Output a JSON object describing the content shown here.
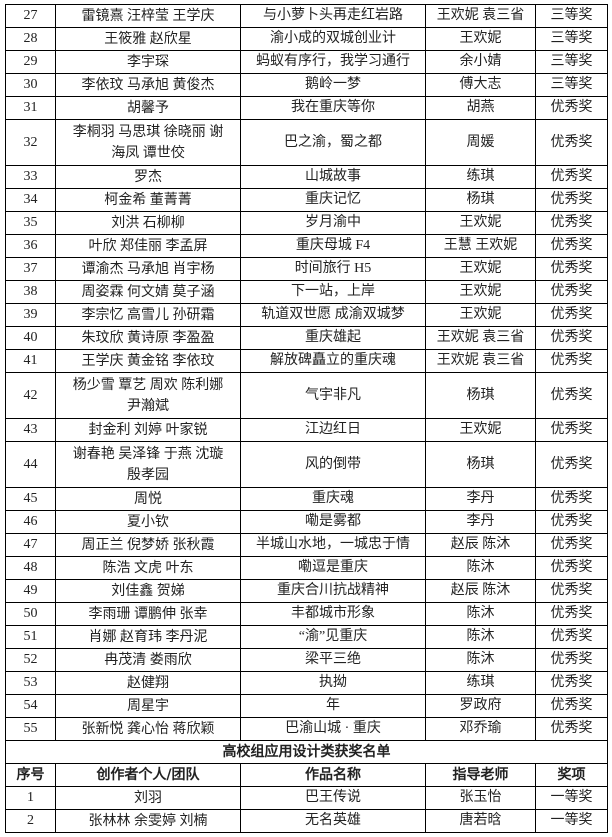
{
  "rows_top": [
    {
      "no": "27",
      "team": [
        "雷镜熹 汪梓莹 王学庆"
      ],
      "work": "与小萝卜头再走红岩路",
      "teacher": "王欢妮 袁三省",
      "award": "三等奖"
    },
    {
      "no": "28",
      "team": [
        "王筱雅 赵欣星"
      ],
      "work": "渝小成的双城创业计",
      "teacher": "王欢妮",
      "award": "三等奖"
    },
    {
      "no": "29",
      "team": [
        "李宇琛"
      ],
      "work": "蚂蚁有序行，我学习通行",
      "teacher": "余小婧",
      "award": "三等奖"
    },
    {
      "no": "30",
      "team": [
        "李依玟 马承旭 黄俊杰"
      ],
      "work": "鹅岭一梦",
      "teacher": "傅大志",
      "award": "三等奖"
    },
    {
      "no": "31",
      "team": [
        "胡馨予"
      ],
      "work": "我在重庆等你",
      "teacher": "胡燕",
      "award": "优秀奖"
    },
    {
      "no": "32",
      "team": [
        "李桐羽 马思琪 徐晓丽 谢",
        "海凤 谭世佼"
      ],
      "work": "巴之渝，蜀之都",
      "teacher": "周媛",
      "award": "优秀奖"
    },
    {
      "no": "33",
      "team": [
        "罗杰"
      ],
      "work": "山城故事",
      "teacher": "练琪",
      "award": "优秀奖"
    },
    {
      "no": "34",
      "team": [
        "柯金希 董菁菁"
      ],
      "work": "重庆记忆",
      "teacher": "杨琪",
      "award": "优秀奖"
    },
    {
      "no": "35",
      "team": [
        "刘洪 石柳柳"
      ],
      "work": "岁月渝中",
      "teacher": "王欢妮",
      "award": "优秀奖"
    },
    {
      "no": "36",
      "team": [
        "叶欣 郑佳丽 李孟屏"
      ],
      "work": "重庆母城 F4",
      "teacher": "王慧 王欢妮",
      "award": "优秀奖"
    },
    {
      "no": "37",
      "team": [
        "谭渝杰 马承旭 肖宇杨"
      ],
      "work": "时间旅行 H5",
      "teacher": "王欢妮",
      "award": "优秀奖"
    },
    {
      "no": "38",
      "team": [
        "周姿霖 何文婧 莫子涵"
      ],
      "work": "下一站，上岸",
      "teacher": "王欢妮",
      "award": "优秀奖"
    },
    {
      "no": "39",
      "team": [
        "李宗忆 高雪儿 孙研霜"
      ],
      "work": "轨道双世愿 成渝双城梦",
      "teacher": "王欢妮",
      "award": "优秀奖"
    },
    {
      "no": "40",
      "team": [
        "朱玟欣 黄诗原 李盈盈"
      ],
      "work": "重庆雄起",
      "teacher": "王欢妮 袁三省",
      "award": "优秀奖"
    },
    {
      "no": "41",
      "team": [
        "王学庆 黄金铭 李依玟"
      ],
      "work": "解放碑矗立的重庆魂",
      "teacher": "王欢妮 袁三省",
      "award": "优秀奖"
    },
    {
      "no": "42",
      "team": [
        "杨少雪 覃艺 周欢 陈利娜",
        "尹瀚斌"
      ],
      "work": "气宇非凡",
      "teacher": "杨琪",
      "award": "优秀奖"
    },
    {
      "no": "43",
      "team": [
        "封金利 刘婷 叶家锐"
      ],
      "work": "江边红日",
      "teacher": "王欢妮",
      "award": "优秀奖"
    },
    {
      "no": "44",
      "team": [
        "谢春艳 吴泽锋 于燕 沈璇",
        "殷孝园"
      ],
      "work": "风的倒带",
      "teacher": "杨琪",
      "award": "优秀奖"
    },
    {
      "no": "45",
      "team": [
        "周悦"
      ],
      "work": "重庆魂",
      "teacher": "李丹",
      "award": "优秀奖"
    },
    {
      "no": "46",
      "team": [
        "夏小钦"
      ],
      "work": "嘞是雾都",
      "teacher": "李丹",
      "award": "优秀奖"
    },
    {
      "no": "47",
      "team": [
        "周正兰 倪梦娇 张秋霞"
      ],
      "work": "半城山水地，一城忠于情",
      "teacher": "赵辰 陈沐",
      "award": "优秀奖"
    },
    {
      "no": "48",
      "team": [
        "陈浩 文虎 叶东"
      ],
      "work": "嘞逗是重庆",
      "teacher": "陈沐",
      "award": "优秀奖"
    },
    {
      "no": "49",
      "team": [
        "刘佳鑫 贺娣"
      ],
      "work": "重庆合川抗战精神",
      "teacher": "赵辰 陈沐",
      "award": "优秀奖"
    },
    {
      "no": "50",
      "team": [
        "李雨珊 谭鹏伸 张幸"
      ],
      "work": "丰都城市形象",
      "teacher": "陈沐",
      "award": "优秀奖"
    },
    {
      "no": "51",
      "team": [
        "肖娜 赵育玮 李丹泥"
      ],
      "work": "“渝”见重庆",
      "teacher": "陈沐",
      "award": "优秀奖"
    },
    {
      "no": "52",
      "team": [
        "冉茂清 娄雨欣"
      ],
      "work": "梁平三绝",
      "teacher": "陈沐",
      "award": "优秀奖"
    },
    {
      "no": "53",
      "team": [
        "赵健翔"
      ],
      "work": "执拗",
      "teacher": "练琪",
      "award": "优秀奖"
    },
    {
      "no": "54",
      "team": [
        "周星宇"
      ],
      "work": "年",
      "teacher": "罗政府",
      "award": "优秀奖"
    },
    {
      "no": "55",
      "team": [
        "张新悦 龚心怡 蒋欣颖"
      ],
      "work": "巴渝山城 · 重庆",
      "teacher": "邓乔瑜",
      "award": "优秀奖"
    }
  ],
  "section_title": "高校组应用设计类获奖名单",
  "headers": [
    "序号",
    "创作者个人/团队",
    "作品名称",
    "指导老师",
    "奖项"
  ],
  "rows_bottom": [
    {
      "no": "1",
      "team": [
        "刘羽"
      ],
      "work": "巴王传说",
      "teacher": "张玉怡",
      "award": "一等奖"
    },
    {
      "no": "2",
      "team": [
        "张林林 余雯婷 刘楠"
      ],
      "work": "无名英雄",
      "teacher": "唐若晗",
      "award": "一等奖"
    }
  ]
}
